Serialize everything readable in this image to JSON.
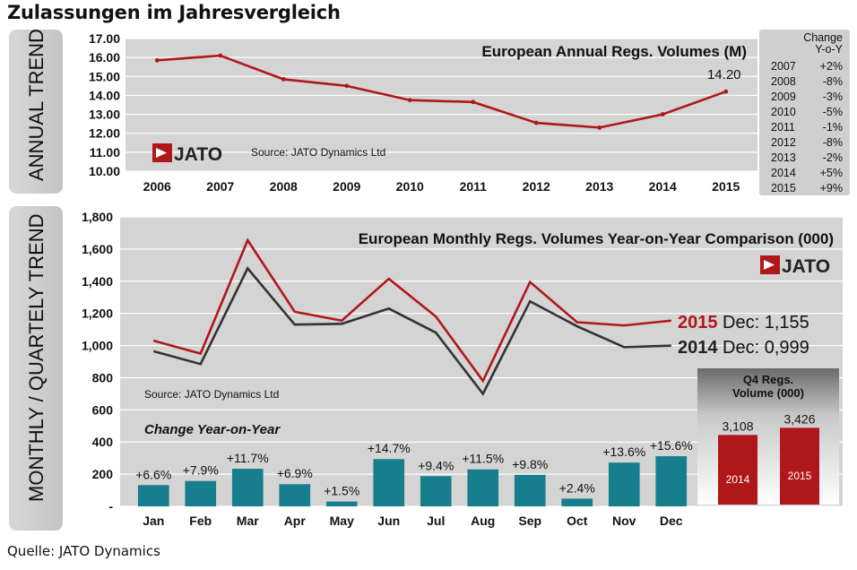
{
  "page": {
    "title": "Zulassungen im Jahresvergleich",
    "source_footer": "Quelle: JATO Dynamics"
  },
  "colors": {
    "red": "#b0171b",
    "dark": "#333333",
    "teal": "#167e8c",
    "panel_bg": "#d4d4d4",
    "side_tab": "#cfcfcf"
  },
  "annual": {
    "side_label": "ANNUAL TREND",
    "logo_text": "JATO",
    "source": "Source: JATO Dynamics Ltd",
    "change_header": [
      "Change",
      "Y-o-Y"
    ],
    "change_rows": [
      {
        "year": "2007",
        "change": "+2%"
      },
      {
        "year": "2008",
        "change": "-8%"
      },
      {
        "year": "2009",
        "change": "-3%"
      },
      {
        "year": "2010",
        "change": "-5%"
      },
      {
        "year": "2011",
        "change": "-1%"
      },
      {
        "year": "2012",
        "change": "-8%"
      },
      {
        "year": "2013",
        "change": "-2%"
      },
      {
        "year": "2014",
        "change": "+5%"
      },
      {
        "year": "2015",
        "change": "+9%"
      }
    ]
  },
  "monthly": {
    "side_label": "MONTHLY / QUARTELY TREND",
    "logo_text": "JATO",
    "source": "Source: JATO Dynamics Ltd",
    "change_title": "Change Year-on-Year",
    "legend_2015_year": "2015",
    "legend_2015_text": "Dec: 1,155",
    "legend_2014_year": "2014",
    "legend_2014_text": "Dec: 0,999",
    "q4_title": [
      "Q4 Regs.",
      "Volume (000)"
    ]
  },
  "chart_data": [
    {
      "type": "line",
      "title": "European Annual Regs. Volumes (M)",
      "x": [
        "2006",
        "2007",
        "2008",
        "2009",
        "2010",
        "2011",
        "2012",
        "2013",
        "2014",
        "2015"
      ],
      "series": [
        {
          "values": [
            15.85,
            16.1,
            14.85,
            14.5,
            13.75,
            13.65,
            12.55,
            12.3,
            13.0,
            14.2
          ]
        }
      ],
      "data_labels": [
        {
          "x": "2015",
          "text": "14.20"
        }
      ],
      "yticks": [
        "17.00",
        "16.00",
        "15.00",
        "14.00",
        "13.00",
        "12.00",
        "11.00",
        "10.00"
      ],
      "ylim": [
        10,
        17
      ],
      "grid": true
    },
    {
      "type": "line",
      "title": "European Monthly Regs. Volumes Year-on-Year Comparison (000)",
      "categories": [
        "Jan",
        "Feb",
        "Mar",
        "Apr",
        "May",
        "Jun",
        "Jul",
        "Aug",
        "Sep",
        "Oct",
        "Nov",
        "Dec"
      ],
      "series": [
        {
          "name": "2015",
          "values": [
            1030,
            950,
            1655,
            1210,
            1155,
            1415,
            1180,
            780,
            1395,
            1145,
            1125,
            1155
          ]
        },
        {
          "name": "2014",
          "values": [
            965,
            885,
            1480,
            1130,
            1135,
            1230,
            1080,
            700,
            1275,
            1120,
            990,
            999
          ]
        }
      ],
      "yticks": [
        "1,800",
        "1,600",
        "1,400",
        "1,200",
        "1,000",
        "800",
        "600",
        "400",
        "200",
        "-"
      ],
      "ylim": [
        0,
        1800
      ],
      "grid": true
    },
    {
      "type": "bar",
      "title": "Change Year-on-Year",
      "categories": [
        "Jan",
        "Feb",
        "Mar",
        "Apr",
        "May",
        "Jun",
        "Jul",
        "Aug",
        "Sep",
        "Oct",
        "Nov",
        "Dec"
      ],
      "values": [
        6.6,
        7.9,
        11.7,
        6.9,
        1.5,
        14.7,
        9.4,
        11.5,
        9.8,
        2.4,
        13.6,
        15.6
      ],
      "labels": [
        "+6.6%",
        "+7.9%",
        "+11.7%",
        "+6.9%",
        "+1.5%",
        "+14.7%",
        "+9.4%",
        "+11.5%",
        "+9.8%",
        "+2.4%",
        "+13.6%",
        "+15.6%"
      ]
    },
    {
      "type": "bar",
      "title": "Q4 Regs. Volume (000)",
      "categories": [
        "2014",
        "2015"
      ],
      "values": [
        3108,
        3426
      ],
      "labels": [
        "3,108",
        "3,426"
      ]
    }
  ]
}
